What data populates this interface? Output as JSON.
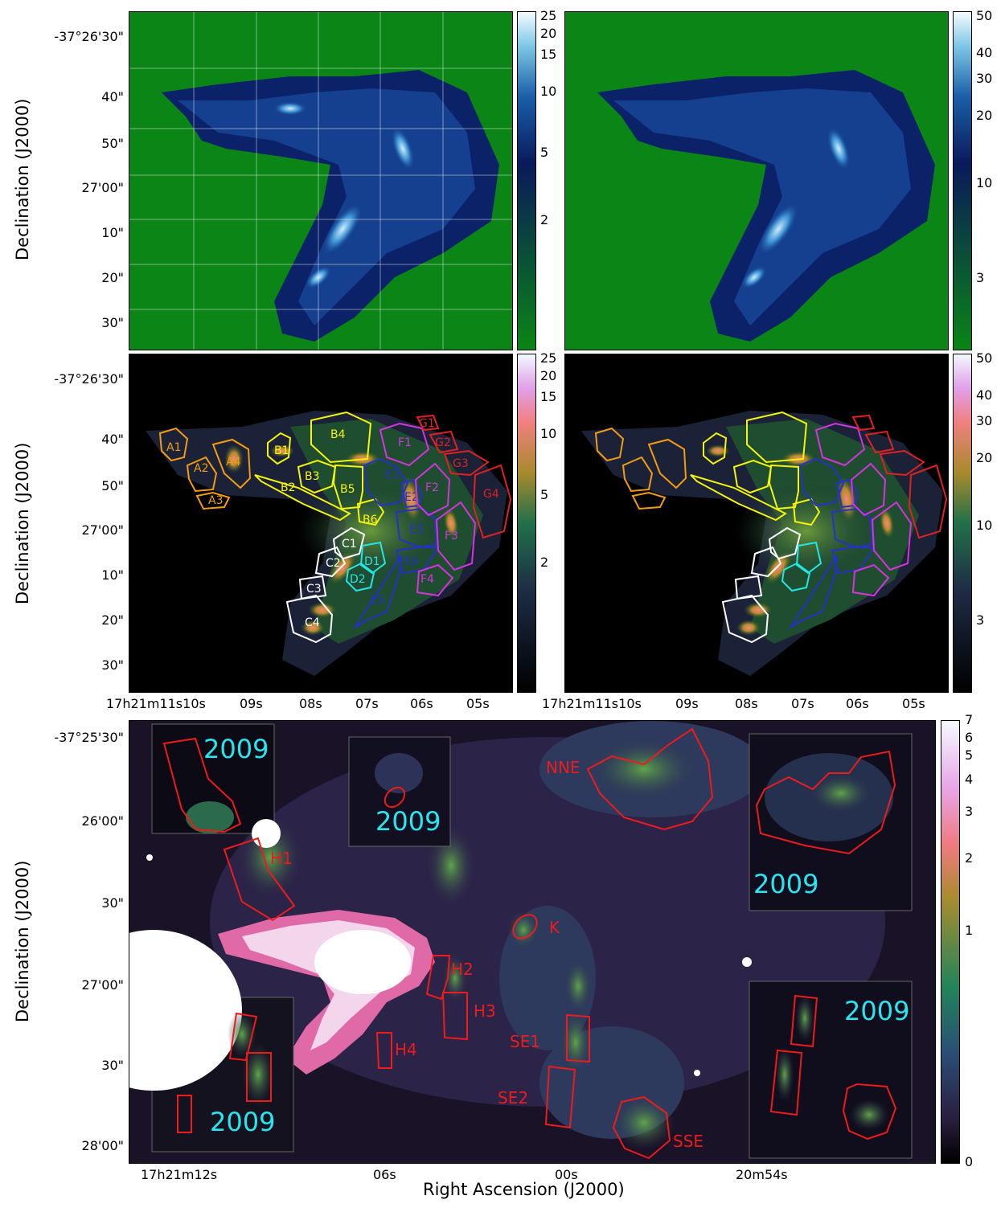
{
  "chart_data": [
    {
      "type": "heatmap",
      "panel": "top-left",
      "colormap": "ocean",
      "ylabel": "Declination (J2000)",
      "yticks": [
        "-37°26'30\"",
        "40\"",
        "50\"",
        "27'00\"",
        "10\"",
        "20\"",
        "30\""
      ],
      "colorbar_ticks": [
        "25",
        "20",
        "15",
        "10",
        "5",
        "2"
      ],
      "colorbar_range": [
        1,
        25
      ]
    },
    {
      "type": "heatmap",
      "panel": "top-right",
      "colormap": "ocean",
      "colorbar_ticks": [
        "50",
        "40",
        "30",
        "20",
        "10",
        "3"
      ],
      "colorbar_range": [
        2,
        50
      ]
    },
    {
      "type": "heatmap",
      "panel": "middle-left",
      "colormap": "cubehelix",
      "ylabel": "Declination (J2000)",
      "yticks": [
        "-37°26'30\"",
        "40\"",
        "50\"",
        "27'00\"",
        "10\"",
        "20\"",
        "30\""
      ],
      "xticks": [
        "17h21m11s10s",
        "09s",
        "08s",
        "07s",
        "06s",
        "05s"
      ],
      "colorbar_ticks": [
        "25",
        "20",
        "15",
        "10",
        "5",
        "2"
      ],
      "colorbar_range": [
        1,
        25
      ],
      "regions": [
        {
          "label": "A1",
          "group": "A"
        },
        {
          "label": "A2",
          "group": "A"
        },
        {
          "label": "A3",
          "group": "A"
        },
        {
          "label": "A4",
          "group": "A"
        },
        {
          "label": "B1",
          "group": "B"
        },
        {
          "label": "B2",
          "group": "B"
        },
        {
          "label": "B3",
          "group": "B"
        },
        {
          "label": "B4",
          "group": "B"
        },
        {
          "label": "B5",
          "group": "B"
        },
        {
          "label": "B6",
          "group": "B"
        },
        {
          "label": "C1",
          "group": "C"
        },
        {
          "label": "C2",
          "group": "C"
        },
        {
          "label": "C3",
          "group": "C"
        },
        {
          "label": "C4",
          "group": "C"
        },
        {
          "label": "D1",
          "group": "D"
        },
        {
          "label": "D2",
          "group": "D"
        },
        {
          "label": "E1",
          "group": "E"
        },
        {
          "label": "E2",
          "group": "E"
        },
        {
          "label": "E3",
          "group": "E"
        },
        {
          "label": "E4",
          "group": "E"
        },
        {
          "label": "E5",
          "group": "E"
        },
        {
          "label": "F1",
          "group": "F"
        },
        {
          "label": "F2",
          "group": "F"
        },
        {
          "label": "F3",
          "group": "F"
        },
        {
          "label": "F4",
          "group": "F"
        },
        {
          "label": "G1",
          "group": "G"
        },
        {
          "label": "G2",
          "group": "G"
        },
        {
          "label": "G3",
          "group": "G"
        },
        {
          "label": "G4",
          "group": "G"
        }
      ]
    },
    {
      "type": "heatmap",
      "panel": "middle-right",
      "colormap": "cubehelix",
      "xticks": [
        "17h21m11s10s",
        "09s",
        "08s",
        "07s",
        "06s",
        "05s"
      ],
      "colorbar_ticks": [
        "50",
        "40",
        "30",
        "20",
        "10",
        "3"
      ],
      "colorbar_range": [
        2,
        50
      ]
    },
    {
      "type": "heatmap",
      "panel": "bottom",
      "colormap": "cubehelix",
      "xlabel": "Right Ascension (J2000)",
      "ylabel": "Declination (J2000)",
      "xticks": [
        "17h21m12s",
        "06s",
        "00s",
        "20m54s"
      ],
      "yticks": [
        "-37°25'30\"",
        "26'00\"",
        "30\"",
        "27'00\"",
        "30\"",
        "28'00\""
      ],
      "colorbar_ticks": [
        "7",
        "6",
        "5",
        "4",
        "3",
        "2",
        "1",
        "0"
      ],
      "colorbar_range": [
        0,
        7
      ],
      "regions": [
        "NNE",
        "H1",
        "K",
        "H2",
        "H3",
        "H4",
        "SE1",
        "SE2",
        "SSE"
      ],
      "inset_label": "2009"
    }
  ],
  "group_colors": {
    "A": "#f39c12",
    "B": "#f4f40c",
    "C": "#ffffff",
    "D": "#22e6e6",
    "E": "#2730c8",
    "F": "#d633e0",
    "G": "#e02121",
    "bottom": "#ee1b1b",
    "inset": "#28e6f0"
  },
  "labels": {
    "dec": "Declination (J2000)",
    "ra": "Right Ascension (J2000)",
    "topY": [
      "-37°26'30\"",
      "40\"",
      "50\"",
      "27'00\"",
      "10\"",
      "20\"",
      "30\""
    ],
    "midX": [
      "17h21m11s10s",
      "09s",
      "08s",
      "07s",
      "06s",
      "05s"
    ],
    "botY": [
      "-37°25'30\"",
      "26'00\"",
      "30\"",
      "27'00\"",
      "30\"",
      "28'00\""
    ],
    "botX": [
      "17h21m12s",
      "06s",
      "00s",
      "20m54s"
    ],
    "cb25": [
      "25",
      "20",
      "15",
      "10",
      "5",
      "2"
    ],
    "cb50": [
      "50",
      "40",
      "30",
      "20",
      "10",
      "3"
    ],
    "cb7": [
      "7",
      "6",
      "5",
      "4",
      "3",
      "2",
      "1",
      "0"
    ],
    "inset": "2009"
  }
}
